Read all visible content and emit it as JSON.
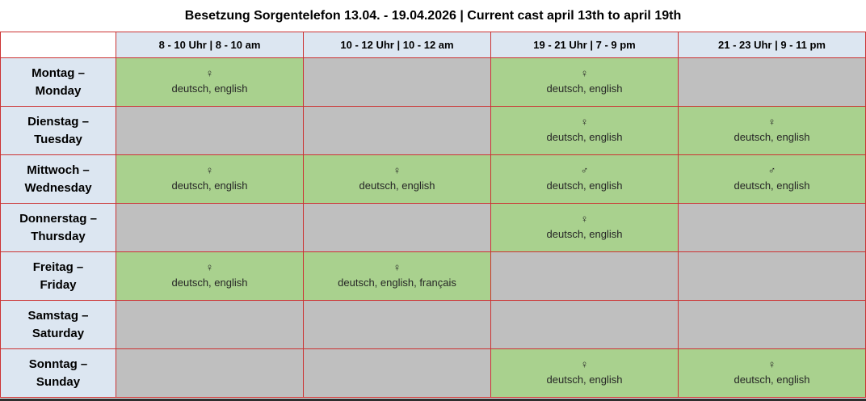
{
  "title": "Besetzung Sorgentelefon 13.04. - 19.04.2026 | Current cast april 13th to april 19th",
  "columns": [
    "8 - 10 Uhr | 8 - 10 am",
    "10 - 12 Uhr | 10 - 12 am",
    "19 - 21 Uhr | 7 - 9 pm",
    "21 - 23 Uhr | 9 - 11 pm"
  ],
  "rows": [
    {
      "day_de": "Montag –",
      "day_en": "Monday",
      "slots": [
        {
          "filled": true,
          "gender": "♀",
          "languages": "deutsch, english"
        },
        {
          "filled": false,
          "gender": "",
          "languages": ""
        },
        {
          "filled": true,
          "gender": "♀",
          "languages": "deutsch, english"
        },
        {
          "filled": false,
          "gender": "",
          "languages": ""
        }
      ]
    },
    {
      "day_de": "Dienstag –",
      "day_en": "Tuesday",
      "slots": [
        {
          "filled": false,
          "gender": "",
          "languages": ""
        },
        {
          "filled": false,
          "gender": "",
          "languages": ""
        },
        {
          "filled": true,
          "gender": "♀",
          "languages": "deutsch, english"
        },
        {
          "filled": true,
          "gender": "♀",
          "languages": "deutsch, english"
        }
      ]
    },
    {
      "day_de": "Mittwoch –",
      "day_en": "Wednesday",
      "slots": [
        {
          "filled": true,
          "gender": "♀",
          "languages": "deutsch, english"
        },
        {
          "filled": true,
          "gender": "♀",
          "languages": "deutsch, english"
        },
        {
          "filled": true,
          "gender": "♂",
          "languages": "deutsch, english"
        },
        {
          "filled": true,
          "gender": "♂",
          "languages": "deutsch, english"
        }
      ]
    },
    {
      "day_de": "Donnerstag –",
      "day_en": "Thursday",
      "slots": [
        {
          "filled": false,
          "gender": "",
          "languages": ""
        },
        {
          "filled": false,
          "gender": "",
          "languages": ""
        },
        {
          "filled": true,
          "gender": "♀",
          "languages": "deutsch, english"
        },
        {
          "filled": false,
          "gender": "",
          "languages": ""
        }
      ]
    },
    {
      "day_de": "Freitag –",
      "day_en": "Friday",
      "slots": [
        {
          "filled": true,
          "gender": "♀",
          "languages": "deutsch, english"
        },
        {
          "filled": true,
          "gender": "♀",
          "languages": "deutsch, english, français"
        },
        {
          "filled": false,
          "gender": "",
          "languages": ""
        },
        {
          "filled": false,
          "gender": "",
          "languages": ""
        }
      ]
    },
    {
      "day_de": "Samstag –",
      "day_en": "Saturday",
      "slots": [
        {
          "filled": false,
          "gender": "",
          "languages": ""
        },
        {
          "filled": false,
          "gender": "",
          "languages": ""
        },
        {
          "filled": false,
          "gender": "",
          "languages": ""
        },
        {
          "filled": false,
          "gender": "",
          "languages": ""
        }
      ]
    },
    {
      "day_de": "Sonntag –",
      "day_en": "Sunday",
      "slots": [
        {
          "filled": false,
          "gender": "",
          "languages": ""
        },
        {
          "filled": false,
          "gender": "",
          "languages": ""
        },
        {
          "filled": true,
          "gender": "♀",
          "languages": "deutsch, english"
        },
        {
          "filled": true,
          "gender": "♀",
          "languages": "deutsch, english"
        }
      ]
    }
  ],
  "colors": {
    "filled_slot": "#a9d18e",
    "empty_slot": "#bfbfbf",
    "header_background": "#dce6f1",
    "border": "#cc3333",
    "cell_text": "#262626",
    "title_text": "#000000",
    "window_bottom_edge": "#2e2e2e"
  }
}
